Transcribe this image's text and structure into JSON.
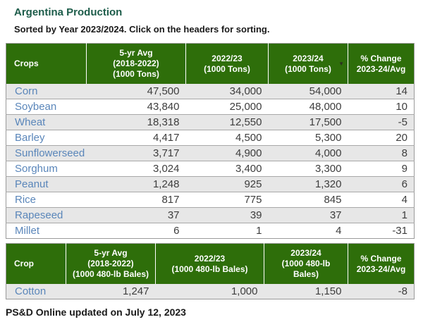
{
  "page": {
    "title": "Argentina Production",
    "subtitle": "Sorted by Year 2023/2024. Click on the headers for sorting.",
    "footer": "PS&D Online updated on July 12, 2023"
  },
  "colors": {
    "header_bg": "#2e6e0a",
    "title_green": "#1d5c4a",
    "link_blue": "#5a86ba",
    "alt_row_bg": "#e7e7e7",
    "value_text": "#3d3d3d"
  },
  "sort": {
    "sorted_column": "2023/24 (1000 Tons)",
    "direction": "descending",
    "icon": "▼"
  },
  "tons_table": {
    "columns": [
      {
        "lines": [
          "Crops"
        ]
      },
      {
        "lines": [
          "5-yr Avg",
          "(2018-2022)",
          "(1000 Tons)"
        ]
      },
      {
        "lines": [
          "2022/23",
          "(1000 Tons)"
        ]
      },
      {
        "lines": [
          "2023/24",
          "(1000 Tons)"
        ],
        "sorted": true
      },
      {
        "lines": [
          "% Change",
          "2023-24/Avg"
        ]
      }
    ],
    "rows": [
      {
        "crop": "Corn",
        "values": [
          "47,500",
          "34,000",
          "54,000",
          "14"
        ]
      },
      {
        "crop": "Soybean",
        "values": [
          "43,840",
          "25,000",
          "48,000",
          "10"
        ]
      },
      {
        "crop": "Wheat",
        "values": [
          "18,318",
          "12,550",
          "17,500",
          "-5"
        ]
      },
      {
        "crop": "Barley",
        "values": [
          "4,417",
          "4,500",
          "5,300",
          "20"
        ]
      },
      {
        "crop": "Sunflowerseed",
        "values": [
          "3,717",
          "4,900",
          "4,000",
          "8"
        ]
      },
      {
        "crop": "Sorghum",
        "values": [
          "3,024",
          "3,400",
          "3,300",
          "9"
        ]
      },
      {
        "crop": "Peanut",
        "values": [
          "1,248",
          "925",
          "1,320",
          "6"
        ]
      },
      {
        "crop": "Rice",
        "values": [
          "817",
          "775",
          "845",
          "4"
        ]
      },
      {
        "crop": "Rapeseed",
        "values": [
          "37",
          "39",
          "37",
          "1"
        ]
      },
      {
        "crop": "Millet",
        "values": [
          "6",
          "1",
          "4",
          "-31"
        ]
      }
    ]
  },
  "bales_table": {
    "columns": [
      {
        "lines": [
          "Crop"
        ]
      },
      {
        "lines": [
          "5-yr Avg",
          "(2018-2022)",
          "(1000 480-lb Bales)"
        ]
      },
      {
        "lines": [
          "2022/23",
          "(1000 480-lb Bales)"
        ]
      },
      {
        "lines": [
          "2023/24",
          "(1000 480-lb",
          "Bales)"
        ]
      },
      {
        "lines": [
          "% Change",
          "2023-24/Avg"
        ]
      }
    ],
    "rows": [
      {
        "crop": "Cotton",
        "values": [
          "1,247",
          "1,000",
          "1,150",
          "-8"
        ]
      }
    ]
  }
}
